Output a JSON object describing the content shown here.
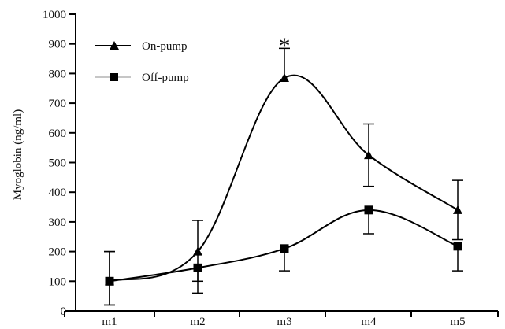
{
  "chart_data": {
    "type": "line",
    "categories": [
      "m1",
      "m2",
      "m3",
      "m4",
      "m5"
    ],
    "ylabel": "Myoglobin (ng/ml)",
    "ylim": [
      0,
      1000
    ],
    "yticks": [
      0,
      100,
      200,
      300,
      400,
      500,
      600,
      700,
      800,
      900,
      1000
    ],
    "grid": false,
    "legend": "top-left",
    "series": [
      {
        "name": "On-pump",
        "marker": "triangle",
        "color": "#000000",
        "values": [
          100,
          200,
          785,
          525,
          340
        ],
        "error_upper": [
          200,
          305,
          885,
          630,
          440
        ],
        "error_lower": [
          20,
          100,
          785,
          420,
          240
        ]
      },
      {
        "name": "Off-pump",
        "marker": "square",
        "color": "#000000",
        "values": [
          100,
          145,
          210,
          340,
          218
        ],
        "error_upper": [
          200,
          145,
          210,
          340,
          218
        ],
        "error_lower": [
          20,
          60,
          135,
          260,
          135
        ]
      }
    ],
    "annotations": [
      {
        "text": "*",
        "category": "m3",
        "y": 920
      }
    ]
  }
}
